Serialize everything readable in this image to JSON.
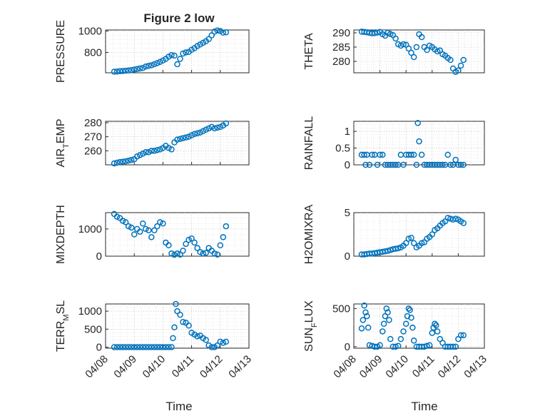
{
  "figure": {
    "title": "Figure 2 low",
    "xlabel": "Time",
    "marker_color": "#0072bd",
    "marker": "circle"
  },
  "chart_data": [
    {
      "type": "scatter",
      "id": "pressure",
      "title": "Figure 2 low",
      "ylabel": "PRESSURE",
      "xlim": [
        "04/08",
        "04/13"
      ],
      "ylim": [
        610,
        1010
      ],
      "yticks": [
        800,
        1000
      ],
      "ytick_labels": [
        "800",
        "1000"
      ],
      "grid": "major-and-minor",
      "x": [
        0.3,
        0.4,
        0.5,
        0.6,
        0.7,
        0.8,
        0.9,
        1.0,
        1.1,
        1.2,
        1.3,
        1.4,
        1.5,
        1.6,
        1.7,
        1.8,
        1.9,
        2.0,
        2.1,
        2.2,
        2.3,
        2.4,
        2.5,
        2.6,
        2.7,
        2.8,
        2.9,
        3.0,
        3.1,
        3.2,
        3.3,
        3.4,
        3.5,
        3.6,
        3.7,
        3.8,
        3.9,
        4.0,
        4.1,
        4.2
      ],
      "y": [
        620,
        622,
        625,
        627,
        629,
        632,
        635,
        640,
        645,
        650,
        655,
        668,
        675,
        680,
        690,
        700,
        712,
        725,
        740,
        760,
        775,
        770,
        690,
        740,
        790,
        800,
        805,
        825,
        840,
        860,
        875,
        890,
        905,
        925,
        960,
        995,
        1005,
        1000,
        985,
        988
      ]
    },
    {
      "type": "scatter",
      "id": "theta",
      "ylabel": "THETA",
      "xlim": [
        "04/08",
        "04/13"
      ],
      "ylim": [
        276,
        291
      ],
      "yticks": [
        280,
        285,
        290
      ],
      "ytick_labels": [
        "280",
        "285",
        "290"
      ],
      "grid": "major-and-minor",
      "x": [
        0.3,
        0.4,
        0.5,
        0.6,
        0.7,
        0.8,
        0.9,
        1.0,
        1.1,
        1.2,
        1.3,
        1.4,
        1.5,
        1.6,
        1.7,
        1.8,
        1.9,
        2.0,
        2.1,
        2.2,
        2.3,
        2.4,
        2.5,
        2.6,
        2.7,
        2.8,
        2.9,
        3.0,
        3.1,
        3.2,
        3.3,
        3.4,
        3.5,
        3.6,
        3.7,
        3.8,
        3.9,
        4.0,
        4.1,
        4.2
      ],
      "y": [
        290.4,
        290.3,
        290.2,
        290.0,
        289.8,
        289.9,
        290.1,
        290.3,
        289.5,
        289.0,
        290.0,
        289.6,
        289.2,
        288.0,
        286.0,
        285.5,
        286.0,
        285.8,
        284.5,
        283.0,
        281.5,
        285.0,
        289.5,
        288.5,
        285.0,
        284.0,
        285.5,
        285.0,
        284.2,
        283.5,
        283.8,
        282.5,
        282.0,
        281.2,
        280.5,
        277.5,
        276.3,
        276.8,
        278.5,
        280.5
      ]
    },
    {
      "type": "scatter",
      "id": "air_temp",
      "ylabel": "AIR",
      "ylabel_sub": "T",
      "ylabel_suffix": "EMP",
      "xlim": [
        "04/08",
        "04/13"
      ],
      "ylim": [
        250,
        281
      ],
      "yticks": [
        260,
        270,
        280
      ],
      "ytick_labels": [
        "260",
        "270",
        "280"
      ],
      "grid": "major-and-minor",
      "x": [
        0.3,
        0.4,
        0.5,
        0.6,
        0.7,
        0.8,
        0.9,
        1.0,
        1.1,
        1.2,
        1.3,
        1.4,
        1.5,
        1.6,
        1.7,
        1.8,
        1.9,
        2.0,
        2.1,
        2.2,
        2.3,
        2.4,
        2.5,
        2.6,
        2.7,
        2.8,
        2.9,
        3.0,
        3.1,
        3.2,
        3.3,
        3.4,
        3.5,
        3.6,
        3.7,
        3.8,
        3.9,
        4.0,
        4.1,
        4.2
      ],
      "y": [
        251,
        251.5,
        252,
        252.2,
        252.5,
        253,
        253.5,
        254,
        256,
        257,
        258,
        259,
        259,
        260,
        260,
        260.5,
        261,
        262,
        263.5,
        262,
        261,
        266,
        268,
        268.5,
        269,
        269.5,
        270,
        271,
        272,
        272.5,
        273,
        274,
        275,
        276,
        277,
        276,
        276.5,
        277,
        278,
        279.5
      ]
    },
    {
      "type": "scatter",
      "id": "rainfall",
      "ylabel": "RAINFALL",
      "xlim": [
        "04/08",
        "04/13"
      ],
      "ylim": [
        0,
        1.3
      ],
      "yticks": [
        0,
        0.5,
        1
      ],
      "ytick_labels": [
        "0",
        "0.5",
        "1"
      ],
      "grid": "major-and-minor",
      "x": [
        0.3,
        0.4,
        0.45,
        0.5,
        0.6,
        0.7,
        0.8,
        0.9,
        1.0,
        1.1,
        1.2,
        1.3,
        1.4,
        1.5,
        1.6,
        1.7,
        1.8,
        1.9,
        2.0,
        2.1,
        2.2,
        2.3,
        2.4,
        2.45,
        2.5,
        2.6,
        2.7,
        2.8,
        2.9,
        3.0,
        3.1,
        3.2,
        3.3,
        3.4,
        3.5,
        3.6,
        3.7,
        3.8,
        3.9,
        4.0,
        4.1,
        4.2
      ],
      "y": [
        0.3,
        0.3,
        0,
        0.3,
        0,
        0.3,
        0.3,
        0,
        0.3,
        0.3,
        0,
        0,
        0,
        0,
        0,
        0,
        0.3,
        0,
        0.3,
        0.3,
        0.3,
        0.3,
        0,
        1.25,
        0.7,
        0.3,
        0,
        0,
        0,
        0,
        0,
        0,
        0,
        0,
        0,
        0.3,
        0,
        0,
        0.15,
        0,
        0,
        0
      ]
    },
    {
      "type": "scatter",
      "id": "mixdepth",
      "ylabel": "MIXDEPTH",
      "xlim": [
        "04/08",
        "04/13"
      ],
      "ylim": [
        0,
        1600
      ],
      "yticks": [
        0,
        1000
      ],
      "ytick_labels": [
        "0",
        "1000"
      ],
      "grid": "major-and-minor",
      "x": [
        0.3,
        0.4,
        0.5,
        0.6,
        0.7,
        0.8,
        0.9,
        1.0,
        1.1,
        1.2,
        1.3,
        1.4,
        1.5,
        1.6,
        1.7,
        1.8,
        1.9,
        2.0,
        2.1,
        2.2,
        2.3,
        2.4,
        2.5,
        2.6,
        2.7,
        2.8,
        2.9,
        3.0,
        3.1,
        3.2,
        3.3,
        3.4,
        3.5,
        3.6,
        3.7,
        3.8,
        3.9,
        4.0,
        4.1,
        4.2
      ],
      "y": [
        1550,
        1450,
        1400,
        1300,
        1250,
        1100,
        1050,
        800,
        1000,
        900,
        1200,
        1000,
        950,
        700,
        950,
        1100,
        1250,
        1200,
        500,
        400,
        100,
        50,
        100,
        60,
        200,
        450,
        600,
        650,
        500,
        300,
        150,
        100,
        120,
        300,
        200,
        100,
        60,
        400,
        700,
        1100
      ]
    },
    {
      "type": "scatter",
      "id": "h2omixra",
      "ylabel": "H2OMIXRA",
      "xlim": [
        "04/08",
        "04/13"
      ],
      "ylim": [
        0,
        5
      ],
      "yticks": [
        0,
        5
      ],
      "ytick_labels": [
        "0",
        "5"
      ],
      "grid": "major-and-minor",
      "x": [
        0.3,
        0.4,
        0.5,
        0.6,
        0.7,
        0.8,
        0.9,
        1.0,
        1.1,
        1.2,
        1.3,
        1.4,
        1.5,
        1.6,
        1.7,
        1.8,
        1.9,
        2.0,
        2.1,
        2.2,
        2.3,
        2.4,
        2.5,
        2.6,
        2.7,
        2.8,
        2.9,
        3.0,
        3.1,
        3.2,
        3.3,
        3.4,
        3.5,
        3.6,
        3.7,
        3.8,
        3.9,
        4.0,
        4.1,
        4.2
      ],
      "y": [
        0.2,
        0.2,
        0.25,
        0.3,
        0.3,
        0.35,
        0.4,
        0.45,
        0.5,
        0.55,
        0.6,
        0.7,
        0.8,
        0.85,
        0.9,
        1.0,
        1.2,
        1.5,
        2.0,
        2.1,
        1.5,
        1.0,
        1.2,
        1.5,
        1.6,
        2.0,
        2.2,
        2.5,
        3.0,
        3.2,
        3.5,
        3.8,
        4.0,
        4.4,
        4.3,
        4.2,
        4.3,
        4.2,
        4.0,
        3.8
      ]
    },
    {
      "type": "scatter",
      "id": "terr_msl",
      "ylabel": "TERR",
      "ylabel_sub": "M",
      "ylabel_suffix": "SL",
      "xlim": [
        "04/08",
        "04/13"
      ],
      "ylim": [
        -30,
        1200
      ],
      "yticks": [
        0,
        500,
        1000
      ],
      "ytick_labels": [
        "0",
        "500",
        "1000"
      ],
      "grid": "major-and-minor",
      "x": [
        0.3,
        0.4,
        0.5,
        0.6,
        0.7,
        0.8,
        0.9,
        1.0,
        1.1,
        1.2,
        1.3,
        1.4,
        1.5,
        1.6,
        1.7,
        1.8,
        1.9,
        2.0,
        2.1,
        2.2,
        2.3,
        2.35,
        2.4,
        2.45,
        2.5,
        2.6,
        2.7,
        2.8,
        2.9,
        3.0,
        3.1,
        3.2,
        3.3,
        3.4,
        3.5,
        3.6,
        3.7,
        3.8,
        3.9,
        4.0,
        4.1,
        4.2
      ],
      "y": [
        0,
        0,
        0,
        0,
        0,
        0,
        0,
        0,
        0,
        0,
        0,
        0,
        0,
        0,
        0,
        0,
        0,
        0,
        0,
        0,
        0,
        250,
        550,
        1200,
        1000,
        900,
        700,
        680,
        600,
        400,
        350,
        300,
        320,
        250,
        200,
        50,
        0,
        0,
        50,
        150,
        120,
        150
      ]
    },
    {
      "type": "scatter",
      "id": "sun_flux",
      "ylabel": "SUN",
      "ylabel_sub": "F",
      "ylabel_suffix": "LUX",
      "xlim": [
        "04/08",
        "04/13"
      ],
      "ylim": [
        -20,
        560
      ],
      "yticks": [
        0,
        500
      ],
      "ytick_labels": [
        "0",
        "500"
      ],
      "grid": "major-and-minor",
      "x": [
        0.3,
        0.35,
        0.4,
        0.45,
        0.5,
        0.55,
        0.6,
        0.7,
        0.8,
        0.9,
        1.0,
        1.1,
        1.15,
        1.2,
        1.25,
        1.3,
        1.35,
        1.4,
        1.5,
        1.6,
        1.7,
        1.8,
        1.9,
        2.0,
        2.05,
        2.1,
        2.15,
        2.2,
        2.25,
        2.3,
        2.4,
        2.5,
        2.6,
        2.7,
        2.8,
        2.9,
        3.0,
        3.05,
        3.1,
        3.15,
        3.2,
        3.3,
        3.4,
        3.5,
        3.6,
        3.7,
        3.8,
        3.9,
        4.0,
        4.1,
        4.2
      ],
      "y": [
        240,
        350,
        540,
        450,
        400,
        250,
        20,
        10,
        0,
        0,
        20,
        200,
        300,
        400,
        500,
        450,
        350,
        100,
        0,
        0,
        10,
        100,
        200,
        300,
        400,
        500,
        480,
        380,
        250,
        80,
        0,
        0,
        0,
        0,
        10,
        20,
        180,
        250,
        300,
        280,
        200,
        100,
        50,
        0,
        0,
        0,
        0,
        0,
        100,
        150,
        150
      ]
    }
  ],
  "x_axis_shared": {
    "tick_labels": [
      "04/08",
      "04/09",
      "04/10",
      "04/11",
      "04/12",
      "04/13"
    ]
  }
}
